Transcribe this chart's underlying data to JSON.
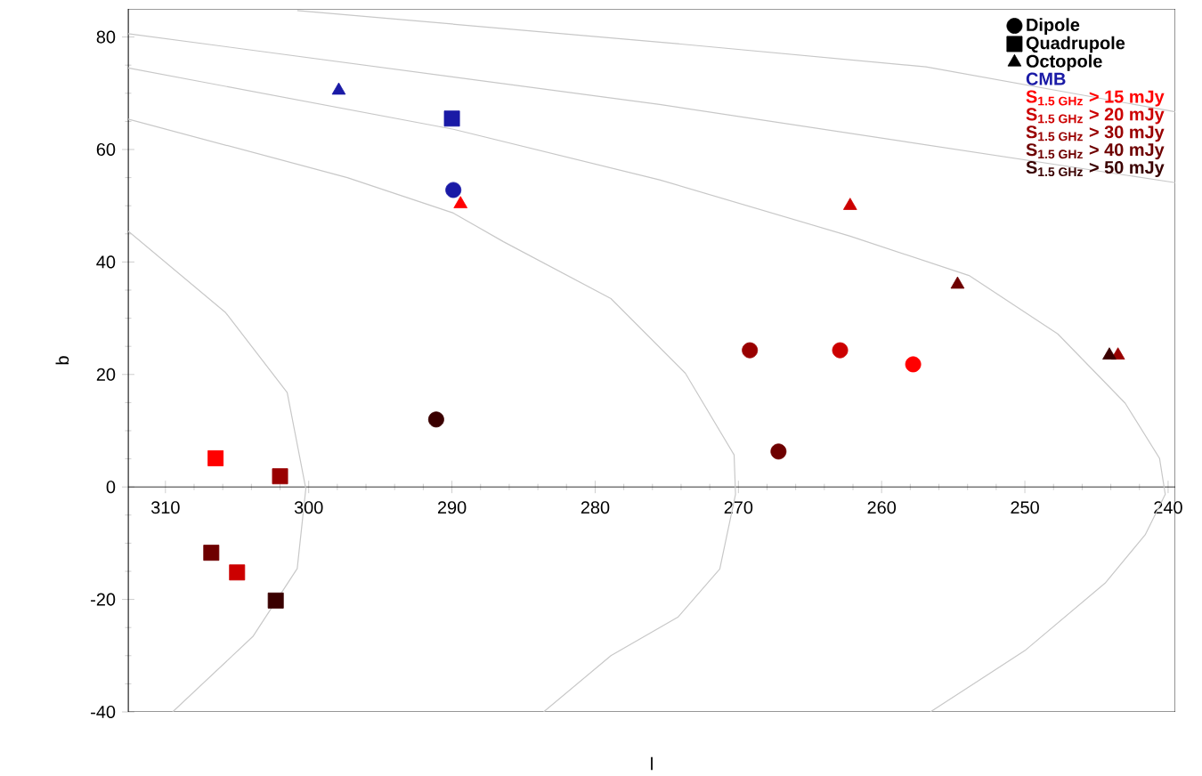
{
  "chart_data": {
    "type": "scatter",
    "xlabel": "l",
    "ylabel": "b",
    "xlim": [
      312.6,
      239.5
    ],
    "ylim": [
      -40,
      85
    ],
    "xticks": [
      310,
      300,
      290,
      280,
      270,
      260,
      250,
      240
    ],
    "yticks": [
      -40,
      -20,
      0,
      20,
      40,
      60,
      80
    ],
    "legend": "top right",
    "series": [
      {
        "name": "Dipole",
        "color": "#000000",
        "marker": "circle"
      },
      {
        "name": "Quadrupole",
        "color": "#000000",
        "marker": "square"
      },
      {
        "name": "Octopole",
        "color": "#000000",
        "marker": "triangle"
      },
      {
        "type": "line",
        "color": "#c8c8c8",
        "marker": "none",
        "x": [
          300.8,
          275.5,
          256.9,
          239.5
        ],
        "values": [
          84.7,
          79.1,
          74.7,
          66.7
        ]
      },
      {
        "type": "line",
        "color": "#c8c8c8",
        "marker": "none",
        "x": [
          312.6,
          275.5,
          239.5
        ],
        "values": [
          80.6,
          68.0,
          54.1
        ]
      },
      {
        "type": "line",
        "color": "#c8c8c8",
        "marker": "none",
        "x": [
          312.6,
          289.9,
          275.5,
          262.2,
          253.9,
          247.7,
          243.0,
          240.6,
          240.2,
          241.6,
          244.4,
          250.0,
          256.6
        ],
        "values": [
          74.5,
          63.6,
          54.6,
          44.6,
          37.6,
          27.2,
          14.9,
          5.1,
          -1.3,
          -8.5,
          -17.1,
          -29.1,
          -40
        ]
      },
      {
        "type": "line",
        "color": "#c8c8c8",
        "marker": "none",
        "x": [
          312.6,
          297.3,
          289.9,
          286.4,
          278.9,
          273.7,
          270.3,
          270.2,
          271.3,
          274.2,
          278.9,
          283.6
        ],
        "values": [
          65.4,
          55.0,
          48.7,
          43.6,
          33.5,
          20.2,
          5.7,
          -1.3,
          -14.6,
          -23.1,
          -30.0,
          -40
        ]
      },
      {
        "type": "line",
        "color": "#c8c8c8",
        "marker": "none",
        "x": [
          312.6,
          305.8,
          301.5,
          300.2,
          300.8,
          303.9,
          309.5
        ],
        "values": [
          45.5,
          31.0,
          16.8,
          -0.3,
          -14.5,
          -26.6,
          -40
        ]
      },
      {
        "name": "CMB",
        "color": "#1a1aa6",
        "marker": "circle",
        "x": [
          289.9
        ],
        "values": [
          52.8
        ]
      },
      {
        "color": "#1a1aa6",
        "marker": "square",
        "x": [
          290.0
        ],
        "values": [
          65.5
        ]
      },
      {
        "color": "#1a1aa6",
        "marker": "triangle",
        "x": [
          297.9
        ],
        "values": [
          70.5
        ]
      },
      {
        "name": "S$_{1.5 GHz}$ > 15 mJy",
        "color": "#ff0000",
        "marker": "circle",
        "x": [
          257.8
        ],
        "values": [
          21.8
        ]
      },
      {
        "color": "#ff0000",
        "marker": "square",
        "x": [
          306.5
        ],
        "values": [
          5.1
        ]
      },
      {
        "color": "#ff0000",
        "marker": "triangle",
        "x": [
          289.4
        ],
        "values": [
          50.3
        ]
      },
      {
        "name": "S$_{1.5 GHz}$ > 20 mJy",
        "color": "#cc0000",
        "marker": "circle",
        "x": [
          262.9
        ],
        "values": [
          24.3
        ]
      },
      {
        "color": "#cc0000",
        "marker": "square",
        "x": [
          305.0
        ],
        "values": [
          -15.2
        ]
      },
      {
        "color": "#cc0000",
        "marker": "triangle",
        "x": [
          262.2
        ],
        "values": [
          50.0
        ]
      },
      {
        "name": "S$_{1.5 GHz}$ > 30 mJy",
        "color": "#990000",
        "marker": "circle",
        "x": [
          269.2
        ],
        "values": [
          24.3
        ]
      },
      {
        "color": "#990000",
        "marker": "square",
        "x": [
          302.0
        ],
        "values": [
          1.9
        ]
      },
      {
        "color": "#990000",
        "marker": "triangle",
        "x": [
          243.5
        ],
        "values": [
          23.4
        ]
      },
      {
        "name": "S$_{1.5 GHz}$ > 40 mJy",
        "color": "#6e0000",
        "marker": "circle",
        "x": [
          267.2
        ],
        "values": [
          6.3
        ]
      },
      {
        "color": "#6e0000",
        "marker": "square",
        "x": [
          306.8
        ],
        "values": [
          -11.7
        ]
      },
      {
        "color": "#6e0000",
        "marker": "triangle",
        "x": [
          254.7
        ],
        "values": [
          36.0
        ]
      },
      {
        "name": "S$_{1.5 GHz}$ > 50 mJy",
        "color": "#3a0000",
        "marker": "circle",
        "x": [
          291.1
        ],
        "values": [
          12.0
        ]
      },
      {
        "color": "#3a0000",
        "marker": "square",
        "x": [
          302.3
        ],
        "values": [
          -20.2
        ]
      },
      {
        "color": "#3a0000",
        "marker": "triangle",
        "x": [
          244.1
        ],
        "values": [
          23.4
        ]
      }
    ]
  }
}
